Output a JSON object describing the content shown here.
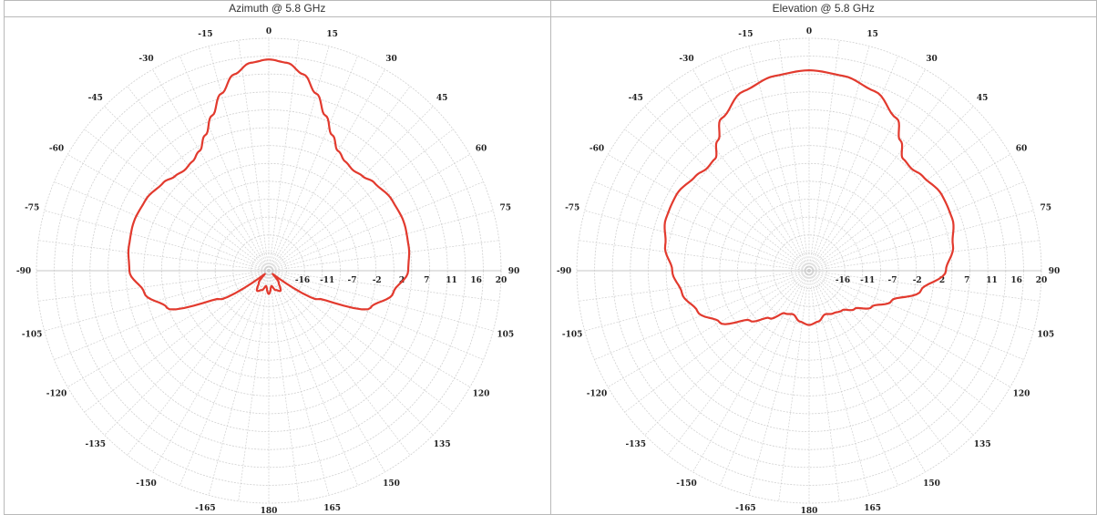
{
  "panels": [
    {
      "title": "Azimuth @ 5.8 GHz"
    },
    {
      "title": "Elevation @ 5.8 GHz"
    }
  ],
  "colors": {
    "trace": "#e23a2e",
    "grid": "#d0d0d0",
    "border": "#b9b9b9"
  },
  "chart_data": [
    {
      "type": "polar-line",
      "title": "Azimuth @ 5.8 GHz",
      "angle_ticks": [
        "0",
        "15",
        "30",
        "45",
        "60",
        "75",
        "90",
        "105",
        "120",
        "135",
        "150",
        "165",
        "180",
        "-165",
        "-150",
        "-135",
        "-120",
        "-105",
        "-90",
        "-75",
        "-60",
        "-45",
        "-30",
        "-15"
      ],
      "angle_units": "degrees",
      "radial_ticks": [
        "-16",
        "-11",
        "-7",
        "-2",
        "2",
        "7",
        "11",
        "16",
        "20"
      ],
      "radial_range": [
        -25,
        20
      ],
      "series": [
        {
          "angles": [
            -180,
            -170,
            -160,
            -150,
            -140,
            -130,
            -120,
            -110,
            -100,
            -90,
            -80,
            -70,
            -60,
            -50,
            -45,
            -40,
            -35,
            -30,
            -25,
            -20,
            -15,
            -10,
            -5,
            0,
            5,
            10,
            15,
            20,
            25,
            30,
            35,
            40,
            45,
            50,
            60,
            70,
            80,
            90,
            100,
            110,
            120,
            130,
            140,
            150,
            160,
            170,
            180
          ],
          "values": [
            -20.5,
            -22.0,
            -21.0,
            -20.5,
            -22.0,
            -24.0,
            -14.0,
            -4.0,
            -0.5,
            2.0,
            2.5,
            2.8,
            2.5,
            1.6,
            0.8,
            0.4,
            0.8,
            1.8,
            4.0,
            7.0,
            10.5,
            13.6,
            15.4,
            15.9,
            15.4,
            13.6,
            10.5,
            7.0,
            4.0,
            1.8,
            0.8,
            0.4,
            0.8,
            1.6,
            2.5,
            2.8,
            2.5,
            2.0,
            -0.5,
            -4.0,
            -14.0,
            -24.0,
            -22.0,
            -20.5,
            -21.0,
            -22.0,
            -20.5
          ]
        }
      ]
    },
    {
      "type": "polar-line",
      "title": "Elevation @ 5.8 GHz",
      "angle_ticks": [
        "0",
        "15",
        "30",
        "45",
        "60",
        "75",
        "90",
        "105",
        "120",
        "135",
        "150",
        "165",
        "180",
        "-165",
        "-150",
        "-135",
        "-120",
        "-105",
        "-90",
        "-75",
        "-60",
        "-45",
        "-30",
        "-15"
      ],
      "angle_units": "degrees",
      "radial_ticks": [
        "-16",
        "-11",
        "-7",
        "-2",
        "2",
        "7",
        "11",
        "16",
        "20"
      ],
      "radial_range": [
        -25,
        20
      ],
      "series": [
        {
          "angles": [
            -180,
            -170,
            -160,
            -150,
            -140,
            -130,
            -120,
            -110,
            -100,
            -90,
            -80,
            -70,
            -60,
            -50,
            -45,
            -40,
            -35,
            -30,
            -20,
            -10,
            0,
            10,
            20,
            30,
            35,
            40,
            45,
            50,
            60,
            70,
            80,
            90,
            100,
            110,
            120,
            130,
            140,
            150,
            160,
            170,
            180
          ],
          "values": [
            -14.5,
            -15.0,
            -16.0,
            -15.5,
            -13.0,
            -10.0,
            -5.0,
            -2.0,
            0.0,
            1.5,
            3.3,
            4.5,
            4.6,
            3.6,
            3.0,
            3.3,
            5.8,
            9.0,
            12.0,
            13.3,
            13.8,
            13.3,
            12.0,
            9.0,
            5.8,
            3.3,
            3.0,
            3.6,
            4.6,
            4.5,
            3.3,
            1.5,
            -3.0,
            -8.0,
            -11.0,
            -13.5,
            -15.0,
            -15.5,
            -16.0,
            -15.0,
            -14.5
          ]
        }
      ]
    }
  ]
}
